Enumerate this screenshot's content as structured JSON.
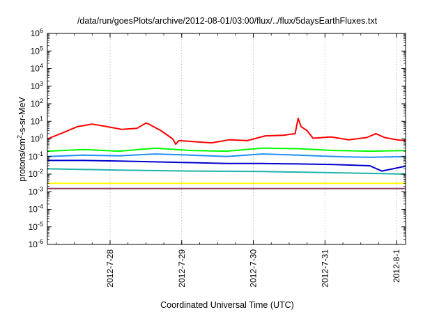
{
  "chart_data": {
    "type": "line",
    "title": "/data/run/goesPlots/archive/2012-08-01/03:00/flux/../flux/5daysEarthFluxes.txt",
    "xlabel": "Coordinated Universal Time (UTC)",
    "ylabel": {
      "base": "protons/cm",
      "sup": "2",
      "rest": "-s-sr-MeV"
    },
    "y_scale": "log",
    "ylim": [
      1e-06,
      1000000.0
    ],
    "xlim": [
      "2012-07-27 03:00",
      "2012-08-01 03:00"
    ],
    "x_ticks": [
      "2012-7-28",
      "2012-7-29",
      "2012-7-30",
      "2012-7-31",
      "2012-8-1"
    ],
    "y_tick_exponents": [
      -6,
      -5,
      -4,
      -3,
      -2,
      -1,
      0,
      1,
      2,
      3,
      4,
      5,
      6
    ],
    "grid": true,
    "series": [
      {
        "color": "#ff0000",
        "x": [
          "2012-07-27 03:00",
          "2012-07-27 08:00",
          "2012-07-27 13:00",
          "2012-07-27 18:00",
          "2012-07-27 23:00",
          "2012-07-28 04:00",
          "2012-07-28 09:00",
          "2012-07-28 12:00",
          "2012-07-28 13:00",
          "2012-07-28 17:00",
          "2012-07-28 21:00",
          "2012-07-28 22:00",
          "2012-07-28 23:00",
          "2012-07-29 04:00",
          "2012-07-29 10:00",
          "2012-07-29 16:00",
          "2012-07-29 22:00",
          "2012-07-30 04:00",
          "2012-07-30 10:00",
          "2012-07-30 14:00",
          "2012-07-30 15:00",
          "2012-07-30 16:00",
          "2012-07-30 18:00",
          "2012-07-30 20:00",
          "2012-07-31 02:00",
          "2012-07-31 08:00",
          "2012-07-31 14:00",
          "2012-07-31 17:00",
          "2012-07-31 20:00",
          "2012-08-01 00:00",
          "2012-08-01 03:00"
        ],
        "values": [
          1.0,
          2.2,
          5.0,
          7.0,
          5.0,
          3.5,
          4.0,
          8.0,
          7.0,
          3.0,
          1.0,
          0.5,
          0.8,
          0.7,
          0.6,
          0.9,
          0.8,
          1.5,
          1.6,
          2.0,
          15.0,
          5.0,
          3.0,
          1.1,
          1.3,
          0.9,
          1.2,
          2.0,
          1.2,
          0.9,
          0.8
        ]
      },
      {
        "color": "#00ff00",
        "x": [
          "2012-07-27 03:00",
          "2012-07-27 15:00",
          "2012-07-28 03:00",
          "2012-07-28 15:00",
          "2012-07-29 03:00",
          "2012-07-29 15:00",
          "2012-07-30 03:00",
          "2012-07-30 15:00",
          "2012-07-31 03:00",
          "2012-07-31 15:00",
          "2012-08-01 03:00"
        ],
        "values": [
          0.2,
          0.25,
          0.2,
          0.3,
          0.22,
          0.2,
          0.3,
          0.28,
          0.22,
          0.2,
          0.22
        ]
      },
      {
        "color": "#1e90ff",
        "x": [
          "2012-07-27 03:00",
          "2012-07-27 15:00",
          "2012-07-28 03:00",
          "2012-07-28 15:00",
          "2012-07-29 03:00",
          "2012-07-29 15:00",
          "2012-07-30 03:00",
          "2012-07-30 15:00",
          "2012-07-31 03:00",
          "2012-07-31 15:00",
          "2012-08-01 03:00"
        ],
        "values": [
          0.1,
          0.12,
          0.11,
          0.14,
          0.12,
          0.1,
          0.14,
          0.12,
          0.1,
          0.09,
          0.1
        ]
      },
      {
        "color": "#0000cd",
        "x": [
          "2012-07-27 03:00",
          "2012-07-27 15:00",
          "2012-07-28 03:00",
          "2012-07-28 15:00",
          "2012-07-29 03:00",
          "2012-07-29 15:00",
          "2012-07-30 03:00",
          "2012-07-30 15:00",
          "2012-07-31 03:00",
          "2012-07-31 15:00",
          "2012-07-31 19:00",
          "2012-08-01 03:00"
        ],
        "values": [
          0.06,
          0.06,
          0.055,
          0.05,
          0.045,
          0.04,
          0.04,
          0.038,
          0.035,
          0.03,
          0.015,
          0.028
        ]
      },
      {
        "color": "#20b2aa",
        "x": [
          "2012-07-27 03:00",
          "2012-07-28 03:00",
          "2012-07-29 03:00",
          "2012-07-30 03:00",
          "2012-07-31 03:00",
          "2012-08-01 03:00"
        ],
        "values": [
          0.02,
          0.017,
          0.015,
          0.014,
          0.012,
          0.01
        ]
      },
      {
        "color": "#ffff00",
        "x": [
          "2012-07-27 03:00",
          "2012-08-01 03:00"
        ],
        "values": [
          0.003,
          0.003
        ]
      },
      {
        "color": "#8b3a62",
        "x": [
          "2012-07-27 03:00",
          "2012-08-01 03:00"
        ],
        "values": [
          0.0015,
          0.0015
        ]
      }
    ]
  }
}
